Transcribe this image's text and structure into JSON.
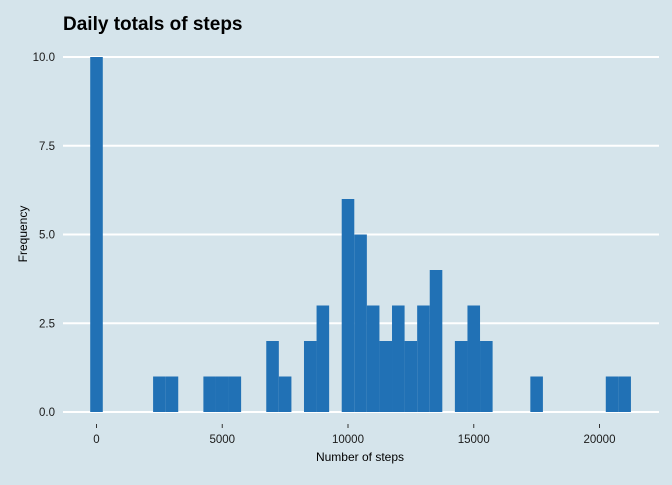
{
  "chart_data": {
    "type": "bar",
    "title": "Daily totals of steps",
    "xlabel": "Number of steps",
    "ylabel": "Frequency",
    "xlim": [
      -1300,
      21800
    ],
    "ylim": [
      0,
      10
    ],
    "bin_width": 500,
    "x_ticks": [
      0,
      5000,
      10000,
      15000,
      20000
    ],
    "x_tick_labels": [
      "0",
      "5000",
      "10000",
      "15000",
      "20000"
    ],
    "y_ticks": [
      0,
      2.5,
      5,
      7.5,
      10
    ],
    "y_tick_labels": [
      "0.0",
      "2.5",
      "5.0",
      "7.5",
      "10.0"
    ],
    "grid": "horizontal",
    "legend": "none",
    "background_color": "#d5e4eb",
    "bar_color": "#2171b5",
    "bins": [
      {
        "x": 0,
        "count": 10
      },
      {
        "x": 2500,
        "count": 1
      },
      {
        "x": 3000,
        "count": 1
      },
      {
        "x": 4500,
        "count": 1
      },
      {
        "x": 5000,
        "count": 1
      },
      {
        "x": 5500,
        "count": 1
      },
      {
        "x": 7000,
        "count": 2
      },
      {
        "x": 7500,
        "count": 1
      },
      {
        "x": 8500,
        "count": 2
      },
      {
        "x": 9000,
        "count": 3
      },
      {
        "x": 10000,
        "count": 6
      },
      {
        "x": 10500,
        "count": 5
      },
      {
        "x": 11000,
        "count": 3
      },
      {
        "x": 11500,
        "count": 2
      },
      {
        "x": 12000,
        "count": 3
      },
      {
        "x": 12500,
        "count": 2
      },
      {
        "x": 13000,
        "count": 3
      },
      {
        "x": 13500,
        "count": 4
      },
      {
        "x": 14500,
        "count": 2
      },
      {
        "x": 15000,
        "count": 3
      },
      {
        "x": 15500,
        "count": 2
      },
      {
        "x": 17500,
        "count": 1
      },
      {
        "x": 20500,
        "count": 1
      },
      {
        "x": 21000,
        "count": 1
      }
    ]
  }
}
